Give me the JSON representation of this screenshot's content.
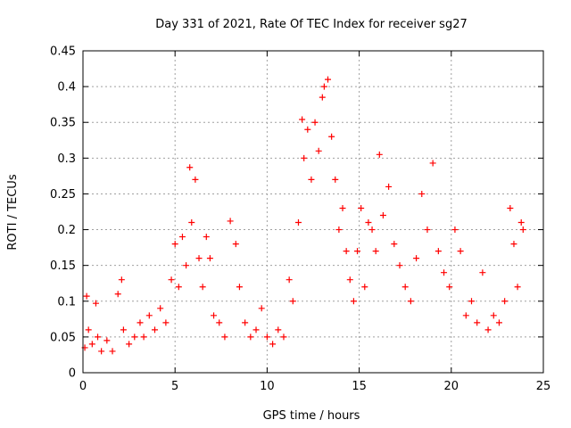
{
  "chart_data": {
    "type": "scatter",
    "title": "Day 331 of 2021, Rate Of TEC Index for receiver sg27",
    "xlabel": "GPS time / hours",
    "ylabel": "ROTI / TECUs",
    "xlim": [
      0,
      25
    ],
    "ylim": [
      0,
      0.45
    ],
    "x_ticks": [
      "0",
      "5",
      "10",
      "15",
      "20",
      "25"
    ],
    "y_ticks": [
      "0",
      "0.05",
      "0.1",
      "0.15",
      "0.2",
      "0.25",
      "0.3",
      "0.35",
      "0.4",
      "0.45"
    ],
    "grid": true,
    "legend": "none",
    "marker": "+",
    "color": "#ff0000",
    "series": [
      {
        "x": [
          0.1,
          0.2,
          0.3,
          0.5,
          0.7,
          0.8,
          1.0,
          1.3,
          1.6,
          1.9,
          2.1,
          2.2,
          2.5,
          2.8,
          3.1,
          3.3,
          3.6,
          3.9,
          4.2,
          4.5,
          4.8,
          5.0,
          5.2,
          5.4,
          5.6,
          5.8,
          5.9,
          6.1,
          6.3,
          6.5,
          6.7,
          6.9,
          7.1,
          7.4,
          7.7,
          8.0,
          8.3,
          8.5,
          8.8,
          9.1,
          9.4,
          9.7,
          10.0,
          10.3,
          10.6,
          10.9,
          11.2,
          11.4,
          11.7,
          11.9,
          12.0,
          12.2,
          12.4,
          12.6,
          12.8,
          13.0,
          13.1,
          13.3,
          13.5,
          13.7,
          13.9,
          14.1,
          14.3,
          14.5,
          14.7,
          14.9,
          15.1,
          15.3,
          15.5,
          15.7,
          15.9,
          16.1,
          16.3,
          16.6,
          16.9,
          17.2,
          17.5,
          17.8,
          18.1,
          18.4,
          18.7,
          19.0,
          19.3,
          19.6,
          19.9,
          20.2,
          20.5,
          20.8,
          21.1,
          21.4,
          21.7,
          22.0,
          22.3,
          22.6,
          22.9,
          23.2,
          23.4,
          23.6,
          23.8,
          23.9
        ],
        "y": [
          0.035,
          0.107,
          0.06,
          0.04,
          0.097,
          0.05,
          0.03,
          0.045,
          0.03,
          0.11,
          0.13,
          0.06,
          0.04,
          0.05,
          0.07,
          0.05,
          0.08,
          0.06,
          0.09,
          0.07,
          0.13,
          0.18,
          0.12,
          0.19,
          0.15,
          0.287,
          0.21,
          0.27,
          0.16,
          0.12,
          0.19,
          0.16,
          0.08,
          0.07,
          0.05,
          0.212,
          0.18,
          0.12,
          0.07,
          0.05,
          0.06,
          0.09,
          0.05,
          0.04,
          0.06,
          0.05,
          0.13,
          0.1,
          0.21,
          0.354,
          0.3,
          0.34,
          0.27,
          0.35,
          0.31,
          0.385,
          0.4,
          0.41,
          0.33,
          0.27,
          0.2,
          0.23,
          0.17,
          0.13,
          0.1,
          0.17,
          0.23,
          0.12,
          0.21,
          0.2,
          0.17,
          0.305,
          0.22,
          0.26,
          0.18,
          0.15,
          0.12,
          0.1,
          0.16,
          0.25,
          0.2,
          0.293,
          0.17,
          0.14,
          0.12,
          0.2,
          0.17,
          0.08,
          0.1,
          0.07,
          0.14,
          0.06,
          0.08,
          0.07,
          0.1,
          0.23,
          0.18,
          0.12,
          0.21,
          0.2
        ]
      }
    ]
  }
}
